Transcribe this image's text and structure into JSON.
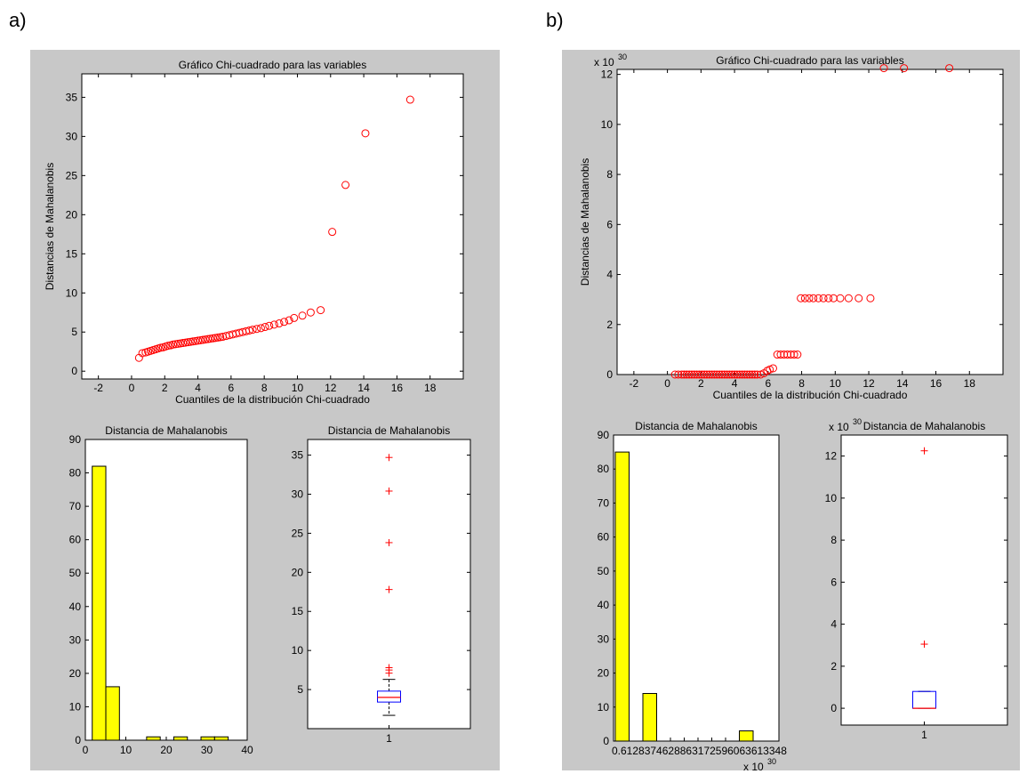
{
  "labels": {
    "a": "a)",
    "b": "b)"
  },
  "chart_data": [
    {
      "id": "a-scatter",
      "type": "scatter",
      "title": "Gráfico Chi-cuadrado para las variables",
      "xlabel": "Cuantiles de la distribución Chi-cuadrado",
      "ylabel": "Distancias de Mahalanobis",
      "xlim": [
        -3,
        20
      ],
      "ylim": [
        -1,
        38
      ],
      "xticks": [
        -2,
        0,
        2,
        4,
        6,
        8,
        10,
        12,
        14,
        16,
        18
      ],
      "yticks": [
        0,
        5,
        10,
        15,
        20,
        25,
        30,
        35
      ],
      "marker": "circle",
      "color": "#ff0000",
      "points": [
        [
          0.45,
          1.7
        ],
        [
          0.65,
          2.3
        ],
        [
          0.85,
          2.4
        ],
        [
          1.0,
          2.5
        ],
        [
          1.15,
          2.6
        ],
        [
          1.3,
          2.7
        ],
        [
          1.45,
          2.8
        ],
        [
          1.6,
          2.9
        ],
        [
          1.75,
          3.0
        ],
        [
          1.9,
          3.05
        ],
        [
          2.05,
          3.15
        ],
        [
          2.2,
          3.25
        ],
        [
          2.35,
          3.3
        ],
        [
          2.5,
          3.4
        ],
        [
          2.65,
          3.45
        ],
        [
          2.8,
          3.5
        ],
        [
          2.95,
          3.55
        ],
        [
          3.1,
          3.6
        ],
        [
          3.25,
          3.65
        ],
        [
          3.4,
          3.7
        ],
        [
          3.55,
          3.75
        ],
        [
          3.7,
          3.8
        ],
        [
          3.85,
          3.85
        ],
        [
          4.0,
          3.9
        ],
        [
          4.15,
          3.95
        ],
        [
          4.3,
          4.0
        ],
        [
          4.45,
          4.05
        ],
        [
          4.6,
          4.1
        ],
        [
          4.75,
          4.15
        ],
        [
          4.9,
          4.2
        ],
        [
          5.05,
          4.25
        ],
        [
          5.2,
          4.3
        ],
        [
          5.35,
          4.35
        ],
        [
          5.5,
          4.4
        ],
        [
          5.7,
          4.5
        ],
        [
          5.9,
          4.6
        ],
        [
          6.1,
          4.7
        ],
        [
          6.3,
          4.8
        ],
        [
          6.5,
          4.9
        ],
        [
          6.7,
          5.0
        ],
        [
          6.9,
          5.1
        ],
        [
          7.1,
          5.2
        ],
        [
          7.3,
          5.3
        ],
        [
          7.55,
          5.4
        ],
        [
          7.8,
          5.5
        ],
        [
          8.05,
          5.65
        ],
        [
          8.3,
          5.8
        ],
        [
          8.6,
          5.95
        ],
        [
          8.9,
          6.1
        ],
        [
          9.2,
          6.3
        ],
        [
          9.5,
          6.5
        ],
        [
          9.8,
          6.8
        ],
        [
          10.3,
          7.1
        ],
        [
          10.8,
          7.5
        ],
        [
          11.4,
          7.8
        ],
        [
          12.1,
          17.8
        ],
        [
          12.9,
          23.8
        ],
        [
          14.1,
          30.4
        ],
        [
          16.8,
          34.7
        ]
      ]
    },
    {
      "id": "a-hist",
      "type": "bar",
      "title": "Distancia de Mahalanobis",
      "xlim": [
        0,
        40
      ],
      "ylim": [
        0,
        90
      ],
      "xticks": [
        0,
        10,
        20,
        30,
        40
      ],
      "yticks": [
        0,
        10,
        20,
        30,
        40,
        50,
        60,
        70,
        80,
        90
      ],
      "bin_width": 3.36,
      "bin_start": 1.7,
      "values": [
        82,
        16,
        0,
        0,
        1,
        0,
        1,
        0,
        1,
        1
      ],
      "color": "#ffff00"
    },
    {
      "id": "a-box",
      "type": "boxplot",
      "title": "Distancia de Mahalanobis",
      "category": "1",
      "ylim": [
        0,
        37
      ],
      "yticks": [
        5,
        10,
        15,
        20,
        25,
        30,
        35
      ],
      "q1": 3.4,
      "median": 4.0,
      "q3": 4.8,
      "whisker_low": 1.7,
      "whisker_high": 6.3,
      "outliers": [
        7.1,
        7.5,
        7.8,
        17.8,
        23.8,
        30.4,
        34.7
      ]
    },
    {
      "id": "b-scatter",
      "type": "scatter",
      "title": "Gráfico Chi-cuadrado para las variables",
      "xlabel": "Cuantiles de la distribución Chi-cuadrado",
      "ylabel": "Distancias de Mahalanobis",
      "exponent": "x 10^30",
      "xlim": [
        -3,
        20
      ],
      "ylim": [
        0,
        12.2
      ],
      "xticks": [
        -2,
        0,
        2,
        4,
        6,
        8,
        10,
        12,
        14,
        16,
        18
      ],
      "yticks": [
        0,
        2,
        4,
        6,
        8,
        10,
        12
      ],
      "marker": "circle",
      "color": "#ff0000",
      "points": [
        [
          0.45,
          0
        ],
        [
          0.65,
          0
        ],
        [
          0.85,
          0
        ],
        [
          1.0,
          0
        ],
        [
          1.15,
          0
        ],
        [
          1.3,
          0
        ],
        [
          1.45,
          0
        ],
        [
          1.6,
          0
        ],
        [
          1.75,
          0
        ],
        [
          1.9,
          0
        ],
        [
          2.05,
          0
        ],
        [
          2.2,
          0
        ],
        [
          2.35,
          0
        ],
        [
          2.5,
          0
        ],
        [
          2.65,
          0
        ],
        [
          2.8,
          0
        ],
        [
          2.95,
          0
        ],
        [
          3.1,
          0
        ],
        [
          3.25,
          0
        ],
        [
          3.4,
          0
        ],
        [
          3.55,
          0
        ],
        [
          3.7,
          0
        ],
        [
          3.85,
          0
        ],
        [
          4.0,
          0
        ],
        [
          4.15,
          0
        ],
        [
          4.3,
          0
        ],
        [
          4.45,
          0
        ],
        [
          4.6,
          0
        ],
        [
          4.75,
          0
        ],
        [
          4.9,
          0
        ],
        [
          5.05,
          0
        ],
        [
          5.2,
          0
        ],
        [
          5.35,
          0
        ],
        [
          5.55,
          0
        ],
        [
          5.75,
          0.05
        ],
        [
          5.95,
          0.15
        ],
        [
          6.1,
          0.2
        ],
        [
          6.3,
          0.25
        ],
        [
          6.55,
          0.8
        ],
        [
          6.75,
          0.8
        ],
        [
          6.95,
          0.8
        ],
        [
          7.15,
          0.8
        ],
        [
          7.35,
          0.8
        ],
        [
          7.55,
          0.8
        ],
        [
          7.75,
          0.8
        ],
        [
          7.95,
          3.05
        ],
        [
          8.2,
          3.05
        ],
        [
          8.45,
          3.05
        ],
        [
          8.7,
          3.05
        ],
        [
          9.0,
          3.05
        ],
        [
          9.3,
          3.05
        ],
        [
          9.6,
          3.05
        ],
        [
          9.9,
          3.05
        ],
        [
          10.3,
          3.05
        ],
        [
          10.8,
          3.05
        ],
        [
          11.4,
          3.05
        ],
        [
          12.1,
          3.05
        ],
        [
          12.9,
          12.25
        ],
        [
          14.1,
          12.25
        ],
        [
          16.8,
          12.25
        ]
      ]
    },
    {
      "id": "b-hist",
      "type": "bar",
      "title": "Distancia de Mahalanobis",
      "exponent": "x 10^30",
      "xtick_text": "0.6128374628863172596063613348",
      "ylim": [
        0,
        90
      ],
      "yticks": [
        0,
        10,
        20,
        30,
        40,
        50,
        60,
        70,
        80,
        90
      ],
      "values": [
        85,
        0,
        14,
        0,
        0,
        0,
        0,
        0,
        0,
        3
      ],
      "color": "#ffff00"
    },
    {
      "id": "b-box",
      "type": "boxplot",
      "title": "Distancia de Mahalanobis",
      "exponent": "x 10^30",
      "category": "1",
      "ylim": [
        -0.8,
        13
      ],
      "yticks": [
        0,
        2,
        4,
        6,
        8,
        10,
        12
      ],
      "q1": 0.0,
      "median": 0.0,
      "q3": 0.8,
      "whisker_low": 0.0,
      "whisker_high": 0.8,
      "outliers": [
        3.05,
        12.25
      ]
    }
  ]
}
